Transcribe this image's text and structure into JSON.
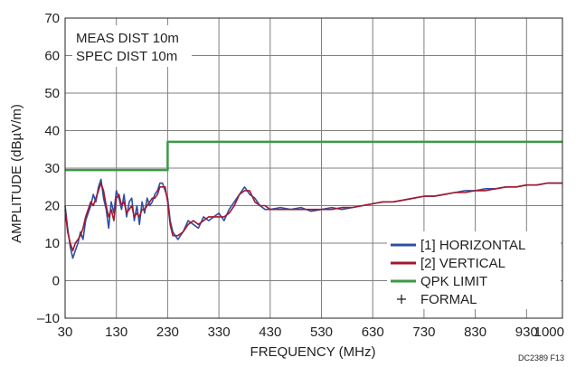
{
  "chart_data": {
    "type": "line",
    "title": "",
    "xlabel": "FREQUENCY (MHz)",
    "ylabel": "AMPLITUDE (dBµV/m)",
    "xlim": [
      30,
      1000
    ],
    "ylim": [
      -10,
      70
    ],
    "x_ticks": [
      30,
      130,
      230,
      330,
      430,
      530,
      630,
      730,
      830,
      930,
      1000
    ],
    "x_tick_labels": [
      "30",
      "130",
      "230",
      "330",
      "430",
      "530",
      "630",
      "730",
      "830",
      "930",
      "1000"
    ],
    "y_ticks": [
      -10,
      0,
      10,
      20,
      30,
      40,
      50,
      60,
      70
    ],
    "y_tick_labels": [
      "–10",
      "0",
      "10",
      "20",
      "30",
      "40",
      "50",
      "60",
      "70"
    ],
    "grid": true,
    "annotations": [
      "MEAS DIST 10m",
      "SPEC DIST 10m"
    ],
    "figure_code": "DC2389 F13",
    "legend_position": "bottom-right",
    "legend": [
      {
        "label": "[1] HORIZONTAL",
        "color": "#2e4fa3",
        "marker": "line"
      },
      {
        "label": "[2] VERTICAL",
        "color": "#a3182e",
        "marker": "line"
      },
      {
        "label": "QPK LIMIT",
        "color": "#3a9a45",
        "marker": "line"
      },
      {
        "label": "FORMAL",
        "color": "#231f20",
        "marker": "+"
      }
    ],
    "series": [
      {
        "name": "[1] HORIZONTAL",
        "color": "#2e4fa3",
        "x": [
          30,
          35,
          40,
          45,
          50,
          55,
          60,
          65,
          70,
          75,
          80,
          85,
          90,
          95,
          100,
          105,
          110,
          115,
          120,
          125,
          130,
          135,
          140,
          145,
          150,
          155,
          160,
          165,
          170,
          175,
          180,
          185,
          190,
          195,
          200,
          205,
          210,
          215,
          220,
          225,
          230,
          235,
          240,
          250,
          260,
          270,
          280,
          290,
          300,
          310,
          320,
          330,
          340,
          350,
          360,
          370,
          380,
          390,
          400,
          410,
          420,
          430,
          450,
          470,
          490,
          510,
          530,
          550,
          570,
          590,
          610,
          630,
          650,
          670,
          690,
          710,
          730,
          750,
          770,
          790,
          810,
          830,
          850,
          870,
          890,
          910,
          930,
          950,
          970,
          990,
          1000
        ],
        "y": [
          20,
          14,
          9,
          6,
          8,
          10,
          13,
          11,
          16,
          18,
          20,
          23,
          21,
          25,
          27,
          22,
          19,
          14,
          21,
          18,
          24,
          22,
          19,
          23,
          17,
          21,
          22,
          16,
          20,
          15,
          21,
          18,
          22,
          20,
          21,
          23,
          24,
          26,
          26,
          24,
          22,
          16,
          13,
          11,
          13,
          16,
          15,
          14,
          17,
          16,
          17,
          18,
          16,
          19,
          21,
          23,
          25,
          23,
          22,
          20,
          19,
          19,
          19.5,
          19,
          19.5,
          18.5,
          19,
          19.5,
          19,
          19.5,
          20,
          20.5,
          21,
          21,
          21.5,
          22,
          22.5,
          22.5,
          23,
          23.5,
          24,
          24,
          24.5,
          24.5,
          25,
          25,
          25.5,
          25.5,
          26,
          26,
          26
        ]
      },
      {
        "name": "[2] VERTICAL",
        "color": "#a3182e",
        "x": [
          30,
          35,
          40,
          45,
          50,
          55,
          60,
          65,
          70,
          75,
          80,
          85,
          90,
          95,
          100,
          105,
          110,
          115,
          120,
          125,
          130,
          135,
          140,
          145,
          150,
          155,
          160,
          165,
          170,
          175,
          180,
          185,
          190,
          195,
          200,
          205,
          210,
          215,
          220,
          225,
          230,
          235,
          240,
          250,
          260,
          270,
          280,
          290,
          300,
          310,
          320,
          330,
          340,
          350,
          360,
          370,
          380,
          390,
          400,
          410,
          420,
          430,
          450,
          470,
          490,
          510,
          530,
          550,
          570,
          590,
          610,
          630,
          650,
          670,
          690,
          710,
          730,
          750,
          770,
          790,
          810,
          830,
          850,
          870,
          890,
          910,
          930,
          950,
          970,
          990,
          1000
        ],
        "y": [
          19,
          13,
          10,
          8,
          10,
          11,
          12,
          14,
          17,
          19,
          21,
          20,
          22,
          24,
          26,
          24,
          20,
          17,
          19,
          16,
          22,
          23,
          20,
          21,
          18,
          19,
          20,
          17,
          18,
          17,
          19,
          19,
          20,
          21,
          22,
          22,
          23,
          25,
          25,
          25,
          21,
          15,
          12,
          12,
          13,
          15,
          16,
          15,
          16,
          17,
          17,
          17,
          17,
          18,
          20,
          23,
          24,
          24,
          21,
          20,
          20,
          19,
          19,
          19,
          19,
          19,
          19,
          19,
          19.5,
          19.5,
          20,
          20.5,
          21,
          21,
          21.5,
          22,
          22.5,
          22.5,
          23,
          23.5,
          23.5,
          24,
          24,
          24.5,
          25,
          25,
          25.5,
          25.5,
          26,
          26,
          26
        ]
      },
      {
        "name": "QPK LIMIT",
        "color": "#3a9a45",
        "x": [
          30,
          230,
          230,
          1000
        ],
        "y": [
          29.5,
          29.5,
          37,
          37
        ]
      }
    ]
  }
}
